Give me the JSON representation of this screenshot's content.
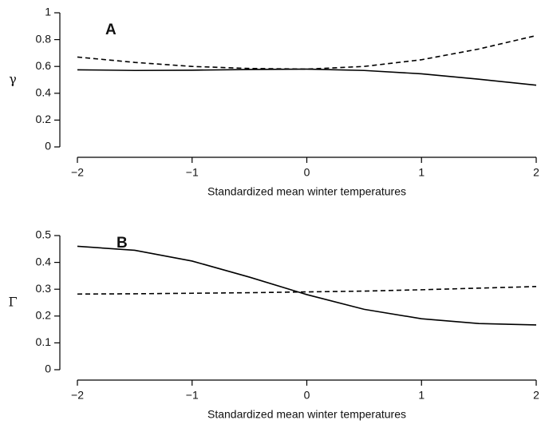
{
  "chart_data": [
    {
      "type": "line",
      "annotation": "A",
      "xlabel": "Standardized mean winter temperatures",
      "ylabel": "γ",
      "x": [
        -2,
        -1.5,
        -1,
        -0.5,
        0,
        0.5,
        1,
        1.5,
        2
      ],
      "series": [
        {
          "color": "#000000",
          "style": "solid",
          "values": [
            0.575,
            0.57,
            0.572,
            0.577,
            0.58,
            0.57,
            0.545,
            0.505,
            0.46
          ]
        },
        {
          "color": "#000000",
          "style": "dashed",
          "values": [
            0.67,
            0.63,
            0.6,
            0.585,
            0.58,
            0.6,
            0.65,
            0.73,
            0.83
          ]
        }
      ],
      "xlim": [
        -2,
        2
      ],
      "xticks": [
        {
          "value": -2,
          "label": "−2"
        },
        {
          "value": -1,
          "label": "−1"
        },
        0,
        1,
        2
      ],
      "ylim": [
        0,
        1
      ],
      "yticks": [
        0,
        0.2,
        0.4,
        0.6,
        0.8,
        1
      ]
    },
    {
      "type": "line",
      "annotation": "B",
      "xlabel": "Standardized mean winter temperatures",
      "ylabel": "Γ",
      "x": [
        -2,
        -1.5,
        -1,
        -0.5,
        0,
        0.5,
        1,
        1.5,
        2
      ],
      "series": [
        {
          "color": "#000000",
          "style": "solid",
          "values": [
            0.46,
            0.445,
            0.405,
            0.345,
            0.28,
            0.225,
            0.19,
            0.172,
            0.167
          ]
        },
        {
          "color": "#000000",
          "style": "dashed",
          "values": [
            0.282,
            0.283,
            0.285,
            0.287,
            0.29,
            0.293,
            0.298,
            0.304,
            0.31
          ]
        }
      ],
      "xlim": [
        -2,
        2
      ],
      "xticks": [
        {
          "value": -2,
          "label": "−2"
        },
        {
          "value": -1,
          "label": "−1"
        },
        0,
        1,
        2
      ],
      "ylim": [
        0,
        0.5
      ],
      "yticks": [
        0,
        0.1,
        0.2,
        0.3,
        0.4,
        0.5
      ]
    }
  ]
}
